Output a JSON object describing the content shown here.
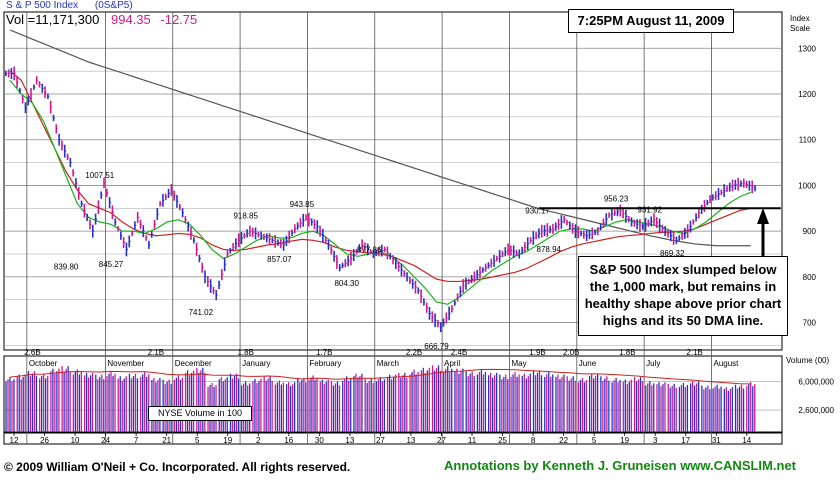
{
  "header": {
    "index_name": "S & P 500 Index",
    "symbol": "(0S&P5)",
    "volume_text": "Vol =11,171,300",
    "last_price": "994.35",
    "change": "-12.75"
  },
  "date_box": "7:25PM August 11, 2009",
  "callout_text": "S&P 500 Index slumped below the 1,000 mark, but remains in healthy shape above prior chart highs and its 50 DMA line.",
  "index_scale_label": [
    "Index",
    "Scale"
  ],
  "volume_panel_label": "NYSE Volume in 100",
  "volume_scale_title": "Volume (00)",
  "footer": {
    "copyright": "© 2009 William O'Neil + Co. Incorporated. All rights reserved.",
    "annotation": "Annotations by Kenneth J. Gruneisen www.CANSLIM.net"
  },
  "colors": {
    "up_bar": "#2233cc",
    "down_bar": "#d0198f",
    "ma_short": "#19b219",
    "ma_long": "#cc2222",
    "ma_200": "#555555",
    "grid": "#000000",
    "annotation": "#118811"
  },
  "chart_data": {
    "type": "line",
    "title": "S & P 500 Index",
    "y_axis": {
      "min": 640,
      "max": 1340,
      "ticks": [
        700,
        800,
        900,
        1000,
        1100,
        1200,
        1300
      ],
      "side": "right",
      "scale": "linear"
    },
    "volume_axis": {
      "min": 0,
      "max": 9000000,
      "ticks": [
        2600000,
        6000000
      ]
    },
    "x_tick_labels": [
      "12",
      "26",
      "10",
      "24",
      "7",
      "21",
      "5",
      "19",
      "2",
      "16",
      "30",
      "13",
      "27",
      "13",
      "27",
      "11",
      "25",
      "8",
      "22",
      "5",
      "19",
      "3",
      "17",
      "31",
      "14"
    ],
    "month_labels": [
      "October",
      "November",
      "December",
      "January",
      "February",
      "March",
      "April",
      "May",
      "June",
      "July",
      "August"
    ],
    "close_series": [
      {
        "x": 0,
        "y": 1245
      },
      {
        "x": 1,
        "y": 1170
      },
      {
        "x": 2,
        "y": 1230
      },
      {
        "x": 3,
        "y": 1195
      },
      {
        "x": 4,
        "y": 1100
      },
      {
        "x": 5,
        "y": 1050
      },
      {
        "x": 6,
        "y": 960
      },
      {
        "x": 7,
        "y": 900
      },
      {
        "x": 8,
        "y": 1005
      },
      {
        "x": 9,
        "y": 920
      },
      {
        "x": 10,
        "y": 860
      },
      {
        "x": 11,
        "y": 930
      },
      {
        "x": 12,
        "y": 870
      },
      {
        "x": 13,
        "y": 960
      },
      {
        "x": 14,
        "y": 990
      },
      {
        "x": 15,
        "y": 940
      },
      {
        "x": 16,
        "y": 880
      },
      {
        "x": 17,
        "y": 800
      },
      {
        "x": 18,
        "y": 760
      },
      {
        "x": 19,
        "y": 850
      },
      {
        "x": 20,
        "y": 880
      },
      {
        "x": 21,
        "y": 900
      },
      {
        "x": 22,
        "y": 890
      },
      {
        "x": 23,
        "y": 880
      },
      {
        "x": 24,
        "y": 870
      },
      {
        "x": 25,
        "y": 905
      },
      {
        "x": 26,
        "y": 930
      },
      {
        "x": 27,
        "y": 910
      },
      {
        "x": 28,
        "y": 870
      },
      {
        "x": 29,
        "y": 820
      },
      {
        "x": 30,
        "y": 840
      },
      {
        "x": 31,
        "y": 870
      },
      {
        "x": 32,
        "y": 850
      },
      {
        "x": 33,
        "y": 860
      },
      {
        "x": 34,
        "y": 830
      },
      {
        "x": 35,
        "y": 800
      },
      {
        "x": 36,
        "y": 770
      },
      {
        "x": 37,
        "y": 720
      },
      {
        "x": 38,
        "y": 690
      },
      {
        "x": 39,
        "y": 730
      },
      {
        "x": 40,
        "y": 780
      },
      {
        "x": 41,
        "y": 800
      },
      {
        "x": 42,
        "y": 820
      },
      {
        "x": 43,
        "y": 840
      },
      {
        "x": 44,
        "y": 860
      },
      {
        "x": 45,
        "y": 850
      },
      {
        "x": 46,
        "y": 880
      },
      {
        "x": 47,
        "y": 900
      },
      {
        "x": 48,
        "y": 905
      },
      {
        "x": 49,
        "y": 925
      },
      {
        "x": 50,
        "y": 900
      },
      {
        "x": 51,
        "y": 890
      },
      {
        "x": 52,
        "y": 900
      },
      {
        "x": 53,
        "y": 935
      },
      {
        "x": 54,
        "y": 945
      },
      {
        "x": 55,
        "y": 920
      },
      {
        "x": 56,
        "y": 910
      },
      {
        "x": 57,
        "y": 925
      },
      {
        "x": 58,
        "y": 900
      },
      {
        "x": 59,
        "y": 880
      },
      {
        "x": 60,
        "y": 900
      },
      {
        "x": 61,
        "y": 940
      },
      {
        "x": 62,
        "y": 970
      },
      {
        "x": 63,
        "y": 985
      },
      {
        "x": 64,
        "y": 1000
      },
      {
        "x": 65,
        "y": 1005
      },
      {
        "x": 66,
        "y": 994
      }
    ],
    "ma_50": [
      1250,
      1230,
      1180,
      1130,
      1080,
      1030,
      990,
      960,
      950,
      940,
      920,
      905,
      895,
      890,
      892,
      895,
      893,
      885,
      870,
      860,
      858,
      860,
      865,
      870,
      873,
      878,
      882,
      880,
      875,
      865,
      858,
      855,
      852,
      850,
      845,
      835,
      825,
      810,
      795,
      790,
      790,
      792,
      795,
      800,
      805,
      810,
      818,
      830,
      842,
      855,
      865,
      872,
      877,
      882,
      887,
      890,
      892,
      895,
      897,
      898,
      900,
      905,
      915,
      925,
      935,
      945,
      950
    ],
    "ma_short": [
      1230,
      1200,
      1180,
      1140,
      1080,
      1020,
      960,
      930,
      920,
      915,
      900,
      900,
      895,
      905,
      920,
      925,
      915,
      890,
      860,
      840,
      850,
      865,
      880,
      890,
      885,
      885,
      895,
      900,
      890,
      870,
      850,
      845,
      850,
      855,
      845,
      825,
      800,
      775,
      745,
      740,
      755,
      775,
      795,
      815,
      830,
      845,
      855,
      870,
      885,
      900,
      905,
      905,
      900,
      910,
      920,
      925,
      920,
      915,
      910,
      900,
      895,
      905,
      920,
      940,
      960,
      975,
      985
    ],
    "ma_200": [
      1340,
      1330,
      1320,
      1310,
      1300,
      1290,
      1280,
      1270,
      1262,
      1254,
      1246,
      1238,
      1230,
      1222,
      1214,
      1206,
      1198,
      1190,
      1182,
      1174,
      1166,
      1158,
      1150,
      1142,
      1134,
      1126,
      1118,
      1110,
      1102,
      1094,
      1086,
      1078,
      1070,
      1062,
      1054,
      1046,
      1038,
      1030,
      1022,
      1014,
      1006,
      998,
      990,
      982,
      974,
      966,
      958,
      950,
      944,
      938,
      932,
      926,
      920,
      914,
      908,
      902,
      896,
      890,
      885,
      880,
      876,
      872,
      870,
      868,
      868,
      868,
      868
    ],
    "volume": [
      6.5,
      6.8,
      7.2,
      6.9,
      7.5,
      7.8,
      7.4,
      7.0,
      6.8,
      7.2,
      6.6,
      6.9,
      7.1,
      6.4,
      6.2,
      6.7,
      7.3,
      7.6,
      5.8,
      6.5,
      6.9,
      6.0,
      6.3,
      6.6,
      6.1,
      5.9,
      6.4,
      6.7,
      6.2,
      6.0,
      6.6,
      6.9,
      6.3,
      6.5,
      6.8,
      7.0,
      7.4,
      7.6,
      7.9,
      7.8,
      7.5,
      7.2,
      7.4,
      7.0,
      6.8,
      7.1,
      6.9,
      7.3,
      7.1,
      6.8,
      6.6,
      6.4,
      6.9,
      6.6,
      6.4,
      6.2,
      6.5,
      6.0,
      5.9,
      5.7,
      5.8,
      6.0,
      5.5,
      5.6,
      5.3,
      5.6,
      5.9
    ],
    "price_labels": [
      {
        "x": 8,
        "y": 1007.51,
        "text": "1007.51"
      },
      {
        "x": 5,
        "y": 839.8,
        "text": "839.80"
      },
      {
        "x": 9,
        "y": 845.27,
        "text": "845.27"
      },
      {
        "x": 17,
        "y": 741.02,
        "text": "741.02"
      },
      {
        "x": 21,
        "y": 918.85,
        "text": "918.85"
      },
      {
        "x": 24,
        "y": 857.07,
        "text": "857.07"
      },
      {
        "x": 26,
        "y": 943.85,
        "text": "943.85"
      },
      {
        "x": 30,
        "y": 804.3,
        "text": "804.30"
      },
      {
        "x": 32,
        "y": 877.86,
        "text": "877.86"
      },
      {
        "x": 38,
        "y": 666.79,
        "text": "666.79"
      },
      {
        "x": 47,
        "y": 930.17,
        "text": "930.17"
      },
      {
        "x": 48,
        "y": 878.94,
        "text": "878.94"
      },
      {
        "x": 54,
        "y": 956.23,
        "text": "956.23"
      },
      {
        "x": 57,
        "y": 931.92,
        "text": "931.92"
      },
      {
        "x": 59,
        "y": 869.32,
        "text": "869.32"
      }
    ],
    "volume_labels": [
      "2.6B",
      "2.1B",
      "1.8B",
      "1.7B",
      "2.2B",
      "2.4B",
      "1.9B",
      "2.0B",
      "1.8B",
      "2.1B"
    ],
    "pivot_line": 950
  }
}
